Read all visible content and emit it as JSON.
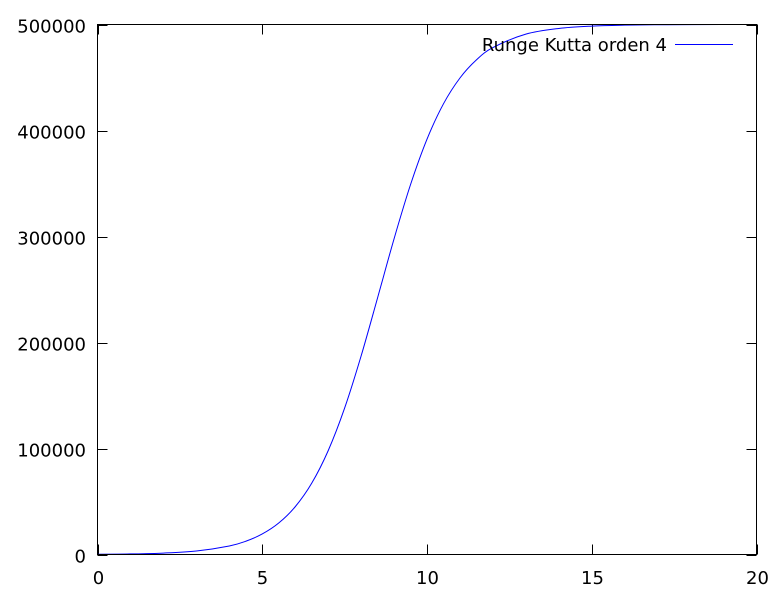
{
  "chart_data": {
    "type": "line",
    "title": "",
    "xlabel": "",
    "ylabel": "",
    "xlim": [
      0,
      20
    ],
    "ylim": [
      0,
      500000
    ],
    "xticks": [
      0,
      5,
      10,
      15,
      20
    ],
    "yticks": [
      0,
      100000,
      200000,
      300000,
      400000,
      500000
    ],
    "grid": false,
    "legend_position": "top-right",
    "series": [
      {
        "name": "Runge Kutta orden 4",
        "color": "#0000ff",
        "x": [
          0,
          1,
          2,
          3,
          4,
          4.5,
          5,
          5.5,
          6,
          6.5,
          7,
          7.5,
          8,
          8.5,
          9,
          9.5,
          10,
          10.5,
          11,
          11.5,
          12,
          13,
          14,
          15,
          16,
          17,
          18,
          20
        ],
        "y": [
          223,
          549,
          1348,
          3303,
          8047,
          12520,
          19342,
          29669,
          45045,
          67177,
          97886,
          138122,
          187266,
          242131,
          297796,
          348918,
          391819,
          425170,
          449528,
          466590,
          478190,
          490890,
          496257,
          498471,
          499377,
          499747,
          499897,
          499983
        ]
      }
    ]
  }
}
